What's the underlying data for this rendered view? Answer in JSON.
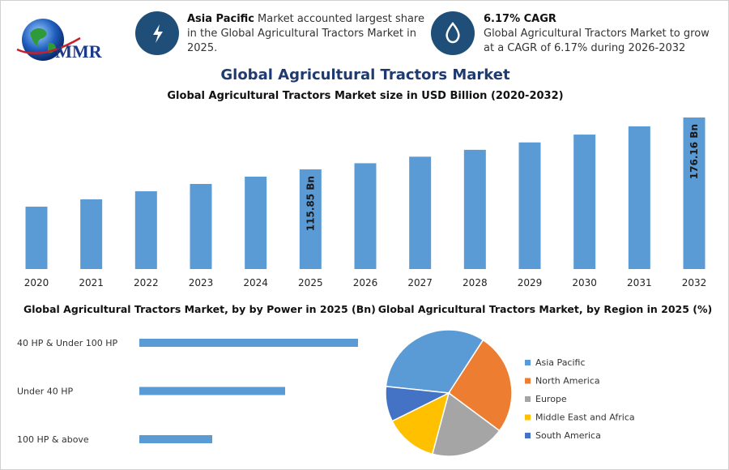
{
  "header": {
    "logo": "MMR",
    "highlights": [
      {
        "bold": "Asia Pacific",
        "text": "Market accounted largest share in the Global Agricultural Tractors Market in 2025."
      },
      {
        "bold": "6.17% CAGR",
        "text": "Global Agricultural Tractors Market to grow at a CAGR of 6.17% during 2026-2032"
      }
    ]
  },
  "title": "Global Agricultural Tractors Market",
  "chart_data": [
    {
      "type": "bar",
      "title": "Global Agricultural Tractors Market size in USD Billion (2020-2032)",
      "categories": [
        "2020",
        "2021",
        "2022",
        "2023",
        "2024",
        "2025",
        "2026",
        "2027",
        "2028",
        "2029",
        "2030",
        "2031",
        "2032"
      ],
      "values": [
        72.5,
        81.0,
        90.4,
        98.9,
        107.4,
        115.85,
        123.0,
        130.6,
        138.6,
        147.2,
        156.3,
        165.9,
        176.16
      ],
      "value_labels": [
        null,
        null,
        null,
        null,
        null,
        "115.85 Bn",
        null,
        null,
        null,
        null,
        null,
        null,
        "176.16 Bn"
      ],
      "color": "#5b9bd5"
    },
    {
      "type": "hbar",
      "title": "Global Agricultural Tractors Market, by by Power in 2025 (Bn)",
      "categories": [
        "40 HP & Under 100 HP",
        "Under 40 HP",
        "100 HP & above"
      ],
      "values": [
        45,
        30,
        15
      ],
      "color": "#5b9bd5"
    },
    {
      "type": "pie",
      "title": "Global Agricultural Tractors Market, by Region in 2025 (%)",
      "categories": [
        "Asia Pacific",
        "North America",
        "Europe",
        "Middle East and Africa",
        "South America"
      ],
      "values": [
        32.5,
        26,
        19,
        13.5,
        9
      ],
      "colors": [
        "#5b9bd5",
        "#ed7d31",
        "#a5a5a5",
        "#ffc000",
        "#4472c4"
      ]
    }
  ]
}
